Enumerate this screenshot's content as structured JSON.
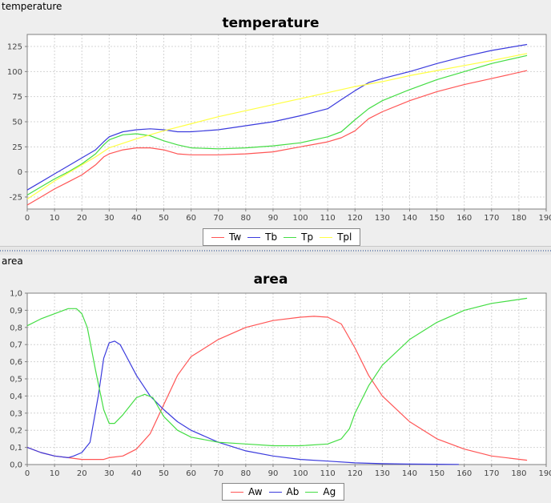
{
  "panels": {
    "top_label": "temperature",
    "bottom_label": "area"
  },
  "chart_data": [
    {
      "type": "line",
      "title": "temperature",
      "xlabel": "",
      "ylabel": "",
      "xlim": [
        0,
        190
      ],
      "ylim": [
        -37,
        137
      ],
      "xticks": [
        "0",
        "10",
        "20",
        "30",
        "40",
        "50",
        "60",
        "70",
        "80",
        "90",
        "100",
        "110",
        "120",
        "130",
        "140",
        "150",
        "160",
        "170",
        "180",
        "190"
      ],
      "yticks": [
        "-25",
        "0",
        "25",
        "50",
        "75",
        "100",
        "125"
      ],
      "grid": true,
      "legend_position": "bottom",
      "series": [
        {
          "name": "Tw",
          "color": "#ff5555",
          "x": [
            0,
            5,
            10,
            15,
            20,
            25,
            28,
            30,
            35,
            40,
            45,
            50,
            55,
            60,
            70,
            80,
            90,
            100,
            110,
            115,
            120,
            125,
            130,
            140,
            150,
            160,
            170,
            183
          ],
          "y": [
            -33,
            -25,
            -17,
            -10,
            -3,
            7,
            15,
            18,
            22,
            24,
            24,
            22,
            18,
            17,
            17,
            18,
            20,
            25,
            30,
            34,
            41,
            53,
            60,
            71,
            80,
            87,
            93,
            101
          ]
        },
        {
          "name": "Tb",
          "color": "#3b3bdd",
          "x": [
            0,
            5,
            10,
            15,
            20,
            25,
            28,
            30,
            35,
            40,
            45,
            50,
            55,
            60,
            70,
            80,
            90,
            100,
            110,
            115,
            120,
            125,
            130,
            140,
            150,
            160,
            170,
            183
          ],
          "y": [
            -18,
            -10,
            -2,
            6,
            14,
            22,
            30,
            35,
            40,
            42,
            43,
            42,
            40,
            40,
            42,
            46,
            50,
            56,
            63,
            72,
            81,
            89,
            93,
            100,
            108,
            115,
            121,
            127
          ]
        },
        {
          "name": "Tp",
          "color": "#44dd44",
          "x": [
            0,
            5,
            10,
            15,
            20,
            25,
            28,
            30,
            35,
            40,
            45,
            50,
            55,
            60,
            70,
            80,
            90,
            100,
            110,
            115,
            120,
            125,
            130,
            140,
            150,
            160,
            170,
            183
          ],
          "y": [
            -23,
            -15,
            -7,
            0,
            8,
            18,
            27,
            32,
            37,
            38,
            36,
            31,
            27,
            24,
            23,
            24,
            26,
            29,
            35,
            40,
            52,
            63,
            71,
            82,
            92,
            100,
            108,
            116
          ]
        },
        {
          "name": "Tpl",
          "color": "#ffff44",
          "x": [
            0,
            5,
            10,
            15,
            20,
            25,
            30,
            40,
            50,
            60,
            70,
            80,
            90,
            100,
            110,
            120,
            130,
            140,
            150,
            160,
            170,
            183
          ],
          "y": [
            -27,
            -18,
            -9,
            -1,
            7,
            15,
            24,
            33,
            41,
            48,
            55,
            61,
            67,
            73,
            79,
            85,
            90,
            96,
            101,
            106,
            111,
            118
          ]
        }
      ]
    },
    {
      "type": "line",
      "title": "area",
      "xlabel": "",
      "ylabel": "",
      "xlim": [
        0,
        190
      ],
      "ylim": [
        0,
        1.0
      ],
      "xticks": [
        "0",
        "10",
        "20",
        "30",
        "40",
        "50",
        "60",
        "70",
        "80",
        "90",
        "100",
        "110",
        "120",
        "130",
        "140",
        "150",
        "160",
        "170",
        "180",
        "190"
      ],
      "yticks": [
        "0,0",
        "0,1",
        "0,2",
        "0,3",
        "0,4",
        "0,5",
        "0,6",
        "0,7",
        "0,8",
        "0,9",
        "1,0"
      ],
      "grid": true,
      "legend_position": "bottom",
      "series": [
        {
          "name": "Aw",
          "color": "#ff5555",
          "x": [
            0,
            5,
            10,
            15,
            20,
            25,
            28,
            30,
            35,
            40,
            45,
            50,
            55,
            60,
            70,
            80,
            90,
            100,
            105,
            110,
            115,
            120,
            125,
            130,
            140,
            150,
            160,
            170,
            183
          ],
          "y": [
            0.1,
            0.07,
            0.05,
            0.04,
            0.03,
            0.03,
            0.03,
            0.04,
            0.05,
            0.09,
            0.18,
            0.35,
            0.52,
            0.63,
            0.73,
            0.8,
            0.84,
            0.86,
            0.865,
            0.86,
            0.82,
            0.68,
            0.52,
            0.4,
            0.25,
            0.15,
            0.09,
            0.05,
            0.025
          ]
        },
        {
          "name": "Ab",
          "color": "#3b3bdd",
          "x": [
            0,
            5,
            10,
            15,
            17,
            20,
            23,
            26,
            28,
            30,
            32,
            34,
            36,
            40,
            45,
            50,
            55,
            60,
            70,
            80,
            90,
            100,
            110,
            120,
            130,
            140,
            150,
            158
          ],
          "y": [
            0.1,
            0.07,
            0.05,
            0.04,
            0.05,
            0.07,
            0.13,
            0.4,
            0.62,
            0.71,
            0.72,
            0.7,
            0.64,
            0.52,
            0.4,
            0.32,
            0.25,
            0.2,
            0.13,
            0.08,
            0.05,
            0.03,
            0.02,
            0.01,
            0.005,
            0.003,
            0.002,
            0.001
          ]
        },
        {
          "name": "Ag",
          "color": "#44dd44",
          "x": [
            0,
            5,
            10,
            15,
            18,
            20,
            22,
            25,
            28,
            30,
            32,
            35,
            40,
            43,
            46,
            50,
            55,
            60,
            70,
            80,
            90,
            100,
            110,
            115,
            118,
            120,
            125,
            130,
            140,
            150,
            160,
            170,
            183
          ],
          "y": [
            0.81,
            0.85,
            0.88,
            0.91,
            0.91,
            0.88,
            0.8,
            0.55,
            0.32,
            0.24,
            0.24,
            0.29,
            0.39,
            0.41,
            0.39,
            0.28,
            0.2,
            0.16,
            0.13,
            0.12,
            0.11,
            0.11,
            0.12,
            0.15,
            0.21,
            0.3,
            0.46,
            0.58,
            0.73,
            0.83,
            0.9,
            0.94,
            0.97
          ]
        }
      ]
    }
  ]
}
